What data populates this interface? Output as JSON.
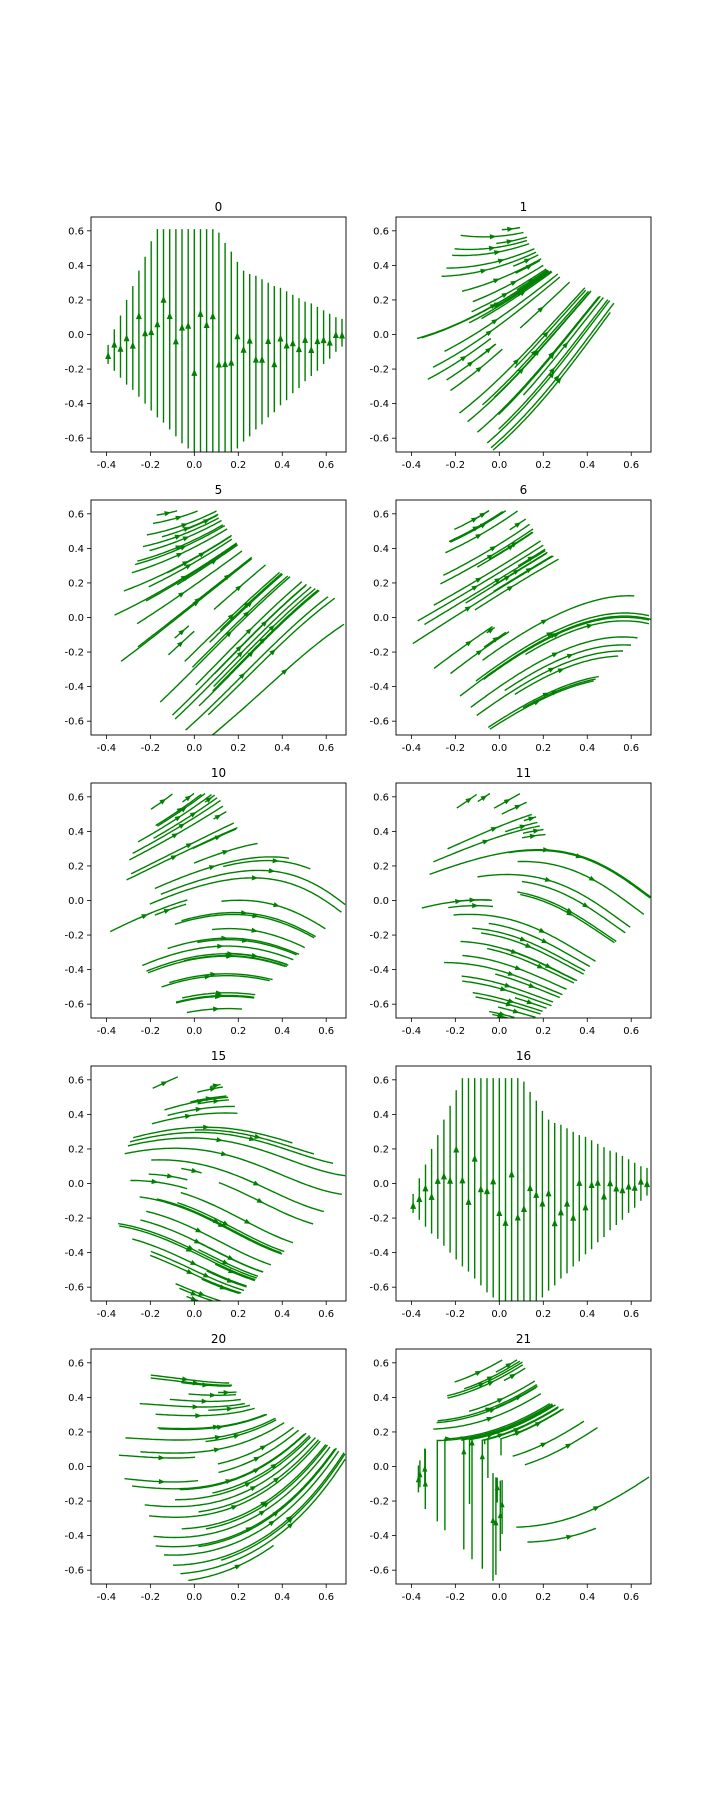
{
  "figure": {
    "stream_color": "#008000",
    "axes_color": "#000000",
    "background": "#ffffff"
  },
  "chart_data": [
    {
      "type": "streamplot",
      "title": "0",
      "pattern": "vertical",
      "xlim": [
        -0.47,
        0.69
      ],
      "ylim": [
        -0.68,
        0.68
      ],
      "xticks": [
        "-0.4",
        "-0.2",
        "0.0",
        "0.2",
        "0.4",
        "0.6"
      ],
      "yticks": [
        "0.6",
        "0.4",
        "0.2",
        "0.0",
        "-0.2",
        "-0.4",
        "-0.6"
      ]
    },
    {
      "type": "streamplot",
      "title": "1",
      "pattern": "curved",
      "xlim": [
        -0.47,
        0.69
      ],
      "ylim": [
        -0.68,
        0.68
      ],
      "xticks": [
        "-0.4",
        "-0.2",
        "0.0",
        "0.2",
        "0.4",
        "0.6"
      ],
      "yticks": [
        "0.6",
        "0.4",
        "0.2",
        "0.0",
        "-0.2",
        "-0.4",
        "-0.6"
      ]
    },
    {
      "type": "streamplot",
      "title": "5",
      "pattern": "curved",
      "xlim": [
        -0.47,
        0.69
      ],
      "ylim": [
        -0.68,
        0.68
      ],
      "xticks": [
        "-0.4",
        "-0.2",
        "0.0",
        "0.2",
        "0.4",
        "0.6"
      ],
      "yticks": [
        "0.6",
        "0.4",
        "0.2",
        "0.0",
        "-0.2",
        "-0.4",
        "-0.6"
      ]
    },
    {
      "type": "streamplot",
      "title": "6",
      "pattern": "curved",
      "xlim": [
        -0.47,
        0.69
      ],
      "ylim": [
        -0.68,
        0.68
      ],
      "xticks": [
        "-0.4",
        "-0.2",
        "0.0",
        "0.2",
        "0.4",
        "0.6"
      ],
      "yticks": [
        "0.6",
        "0.4",
        "0.2",
        "0.0",
        "-0.2",
        "-0.4",
        "-0.6"
      ]
    },
    {
      "type": "streamplot",
      "title": "10",
      "pattern": "curved",
      "xlim": [
        -0.47,
        0.69
      ],
      "ylim": [
        -0.68,
        0.68
      ],
      "xticks": [
        "-0.4",
        "-0.2",
        "0.0",
        "0.2",
        "0.4",
        "0.6"
      ],
      "yticks": [
        "0.6",
        "0.4",
        "0.2",
        "0.0",
        "-0.2",
        "-0.4",
        "-0.6"
      ]
    },
    {
      "type": "streamplot",
      "title": "11",
      "pattern": "curved",
      "xlim": [
        -0.47,
        0.69
      ],
      "ylim": [
        -0.68,
        0.68
      ],
      "xticks": [
        "-0.4",
        "-0.2",
        "0.0",
        "0.2",
        "0.4",
        "0.6"
      ],
      "yticks": [
        "0.6",
        "0.4",
        "0.2",
        "0.0",
        "-0.2",
        "-0.4",
        "-0.6"
      ]
    },
    {
      "type": "streamplot",
      "title": "15",
      "pattern": "curved",
      "xlim": [
        -0.47,
        0.69
      ],
      "ylim": [
        -0.68,
        0.68
      ],
      "xticks": [
        "-0.4",
        "-0.2",
        "0.0",
        "0.2",
        "0.4",
        "0.6"
      ],
      "yticks": [
        "0.6",
        "0.4",
        "0.2",
        "0.0",
        "-0.2",
        "-0.4",
        "-0.6"
      ]
    },
    {
      "type": "streamplot",
      "title": "16",
      "pattern": "vertical",
      "xlim": [
        -0.47,
        0.69
      ],
      "ylim": [
        -0.68,
        0.68
      ],
      "xticks": [
        "-0.4",
        "-0.2",
        "0.0",
        "0.2",
        "0.4",
        "0.6"
      ],
      "yticks": [
        "0.6",
        "0.4",
        "0.2",
        "0.0",
        "-0.2",
        "-0.4",
        "-0.6"
      ]
    },
    {
      "type": "streamplot",
      "title": "20",
      "pattern": "curved",
      "xlim": [
        -0.47,
        0.69
      ],
      "ylim": [
        -0.68,
        0.68
      ],
      "xticks": [
        "-0.4",
        "-0.2",
        "0.0",
        "0.2",
        "0.4",
        "0.6"
      ],
      "yticks": [
        "0.6",
        "0.4",
        "0.2",
        "0.0",
        "-0.2",
        "-0.4",
        "-0.6"
      ]
    },
    {
      "type": "streamplot",
      "title": "21",
      "pattern": "mixed",
      "xlim": [
        -0.47,
        0.69
      ],
      "ylim": [
        -0.68,
        0.68
      ],
      "xticks": [
        "-0.4",
        "-0.2",
        "0.0",
        "0.2",
        "0.4",
        "0.6"
      ],
      "yticks": [
        "0.6",
        "0.4",
        "0.2",
        "0.0",
        "-0.2",
        "-0.4",
        "-0.6"
      ]
    }
  ]
}
